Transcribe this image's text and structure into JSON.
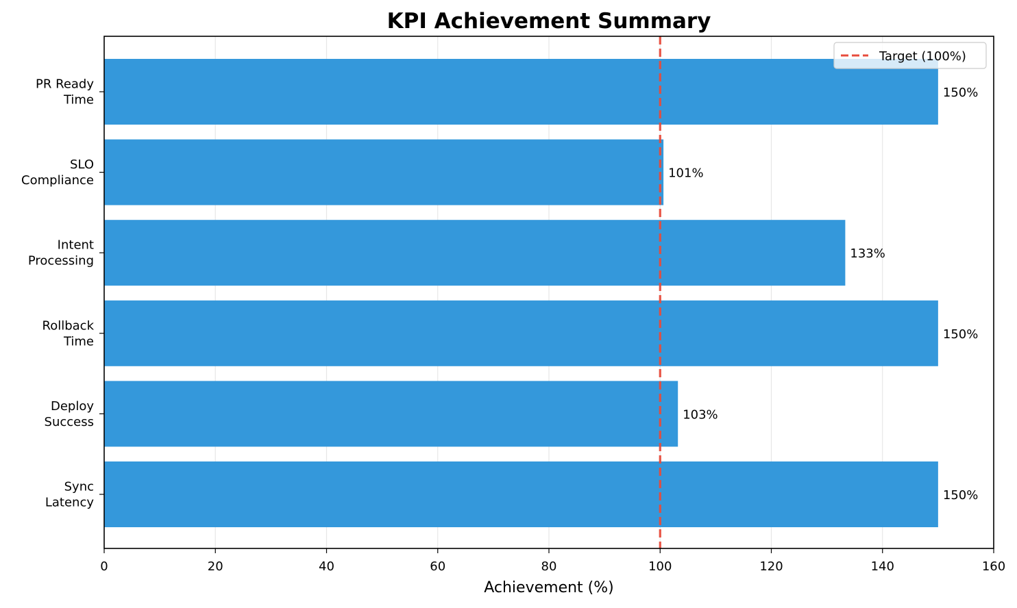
{
  "chart_data": {
    "type": "bar",
    "orientation": "horizontal",
    "title": "KPI Achievement Summary",
    "xlabel": "Achievement (%)",
    "ylabel": "",
    "xlim": [
      0,
      160
    ],
    "xticks": [
      0,
      20,
      40,
      60,
      80,
      100,
      120,
      140,
      160
    ],
    "categories": [
      [
        "PR Ready",
        "Time"
      ],
      [
        "SLO",
        "Compliance"
      ],
      [
        "Intent",
        "Processing"
      ],
      [
        "Rollback",
        "Time"
      ],
      [
        "Deploy",
        "Success"
      ],
      [
        "Sync",
        "Latency"
      ]
    ],
    "values": [
      150,
      100.6,
      133.3,
      150,
      103.2,
      150
    ],
    "data_labels": [
      "150%",
      "101%",
      "133%",
      "150%",
      "103%",
      "150%"
    ],
    "bar_color": "#3498db",
    "grid": "x",
    "reference_line": {
      "value": 100,
      "label": "Target (100%)",
      "color": "#e74c3c",
      "style": "dashed"
    },
    "legend": {
      "position": "top-right",
      "entries": [
        "Target (100%)"
      ]
    }
  }
}
